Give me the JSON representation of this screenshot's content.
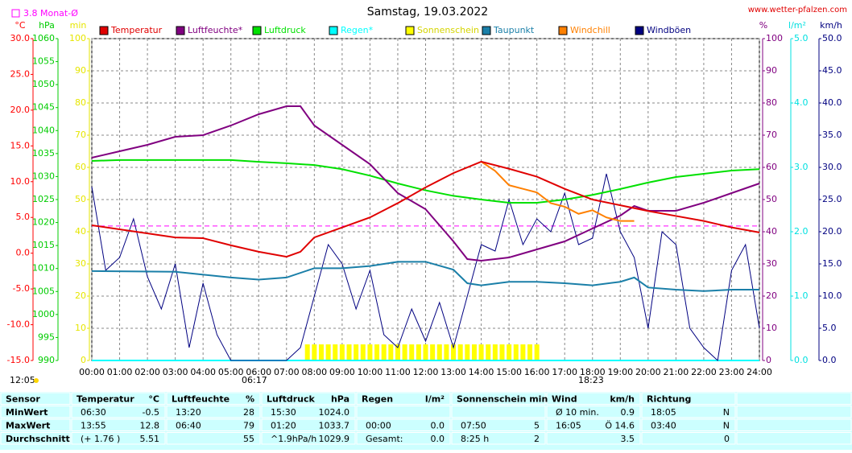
{
  "chart_data": {
    "type": "line",
    "title": "Samstag, 19.03.2022",
    "source": "www.wetter-pfalzen.com",
    "monthly_avg": {
      "label": "3.8 Monat-Ø",
      "value": 3.8,
      "color": "#ff00ff"
    },
    "notes": [
      "12:05",
      "06:17",
      "18:23"
    ],
    "xlim": [
      0,
      24
    ],
    "xticks": [
      {
        "value": 0,
        "label": "00:00"
      },
      {
        "value": 1,
        "label": "01:00"
      },
      {
        "value": 2,
        "label": "02:00"
      },
      {
        "value": 3,
        "label": "03:00"
      },
      {
        "value": 4,
        "label": "04:00"
      },
      {
        "value": 5,
        "label": "05:00"
      },
      {
        "value": 6,
        "label": "06:00"
      },
      {
        "value": 7,
        "label": "07:00"
      },
      {
        "value": 8,
        "label": "08:00"
      },
      {
        "value": 9,
        "label": "09:00"
      },
      {
        "value": 10,
        "label": "10:00"
      },
      {
        "value": 11,
        "label": "11:00"
      },
      {
        "value": 12,
        "label": "12:00"
      },
      {
        "value": 13,
        "label": "13:00"
      },
      {
        "value": 14,
        "label": "14:00"
      },
      {
        "value": 15,
        "label": "15:00"
      },
      {
        "value": 16,
        "label": "16:00"
      },
      {
        "value": 17,
        "label": "17:00"
      },
      {
        "value": 18,
        "label": "18:00"
      },
      {
        "value": 19,
        "label": "19:00"
      },
      {
        "value": 20,
        "label": "20:00"
      },
      {
        "value": 21,
        "label": "21:00"
      },
      {
        "value": 22,
        "label": "22:00"
      },
      {
        "value": 23,
        "label": "23:00"
      },
      {
        "value": 24,
        "label": "24:00"
      }
    ],
    "axes": {
      "temp": {
        "unit": "°C",
        "side": "left",
        "color": "#ff0000",
        "lim": [
          -15,
          30
        ],
        "ticks": [
          {
            "value": -15,
            "label": "-15.0"
          },
          {
            "value": -10,
            "label": "-10.0"
          },
          {
            "value": -5,
            "label": "-5.0"
          },
          {
            "value": 0,
            "label": "0.0"
          },
          {
            "value": 5,
            "label": "5.0"
          },
          {
            "value": 10,
            "label": "10.0"
          },
          {
            "value": 15,
            "label": "15.0"
          },
          {
            "value": 20,
            "label": "20.0"
          },
          {
            "value": 25,
            "label": "25.0"
          },
          {
            "value": 30,
            "label": "30.0"
          }
        ]
      },
      "hpa": {
        "unit": "hPa",
        "side": "left",
        "color": "#00cc00",
        "lim": [
          990,
          1060
        ],
        "ticks": [
          990,
          995,
          1000,
          1005,
          1010,
          1015,
          1020,
          1025,
          1030,
          1035,
          1040,
          1045,
          1050,
          1055,
          1060
        ]
      },
      "min": {
        "unit": "min",
        "side": "left",
        "color": "#e6e600",
        "lim": [
          0,
          100
        ],
        "ticks": [
          0,
          10,
          20,
          30,
          40,
          50,
          60,
          70,
          80,
          90,
          100
        ]
      },
      "pct": {
        "unit": "%",
        "side": "right",
        "color": "#800080",
        "lim": [
          0,
          100
        ],
        "ticks": [
          0,
          10,
          20,
          30,
          40,
          50,
          60,
          70,
          80,
          90,
          100
        ]
      },
      "rain": {
        "unit": "l/m²",
        "side": "right",
        "color": "#00e0e0",
        "lim": [
          0,
          5
        ],
        "ticks": [
          {
            "value": 0,
            "label": "0.0"
          },
          {
            "value": 1,
            "label": "1.0"
          },
          {
            "value": 2,
            "label": "2.0"
          },
          {
            "value": 3,
            "label": "3.0"
          },
          {
            "value": 4,
            "label": "4.0"
          },
          {
            "value": 5,
            "label": "5.0"
          }
        ]
      },
      "kmh": {
        "unit": "km/h",
        "side": "right",
        "color": "#000080",
        "lim": [
          0,
          50
        ],
        "ticks": [
          {
            "value": 0,
            "label": "0.0"
          },
          {
            "value": 5,
            "label": "5.0"
          },
          {
            "value": 10,
            "label": "10.0"
          },
          {
            "value": 15,
            "label": "15.0"
          },
          {
            "value": 20,
            "label": "20.0"
          },
          {
            "value": 25,
            "label": "25.0"
          },
          {
            "value": 30,
            "label": "30.0"
          },
          {
            "value": 35,
            "label": "35.0"
          },
          {
            "value": 40,
            "label": "40.0"
          },
          {
            "value": 45,
            "label": "45.0"
          },
          {
            "value": 50,
            "label": "50.0"
          }
        ]
      }
    },
    "series": [
      {
        "name": "Temperatur",
        "color": "#e00000",
        "axis": "temp",
        "kind": "line",
        "x": [
          0,
          3,
          4,
          5,
          6,
          7,
          7.5,
          8,
          9,
          10,
          11,
          12,
          13,
          14,
          15,
          16,
          17,
          18,
          19,
          20,
          21,
          22,
          23,
          24
        ],
        "values": [
          3.9,
          2.2,
          2.1,
          1.1,
          0.2,
          -0.5,
          0.2,
          2.2,
          3.6,
          5.0,
          7.0,
          9.2,
          11.2,
          12.8,
          11.8,
          10.7,
          9.0,
          7.5,
          6.7,
          5.9,
          5.2,
          4.5,
          3.6,
          2.9
        ]
      },
      {
        "name": "Luftfeuchte*",
        "color": "#800080",
        "axis": "pct",
        "kind": "line",
        "x": [
          0,
          1,
          2,
          3,
          4,
          5,
          6,
          7,
          7.5,
          8,
          9,
          10,
          11,
          12,
          13,
          13.5,
          14,
          15,
          16,
          17,
          18,
          19,
          19.5,
          20,
          21,
          22,
          23,
          24
        ],
        "values": [
          63,
          65,
          67,
          69.5,
          70,
          73,
          76.5,
          79,
          79,
          73,
          67,
          61,
          52,
          47,
          37,
          31.5,
          31,
          32,
          34.5,
          37,
          41,
          45,
          48,
          46.5,
          46.5,
          49,
          52,
          55
        ]
      },
      {
        "name": "Luftdruck",
        "color": "#00e000",
        "axis": "hpa",
        "kind": "line",
        "x": [
          0,
          1,
          2,
          3,
          4,
          5,
          6,
          7,
          8,
          9,
          10,
          11,
          12,
          13,
          14,
          15,
          16,
          17,
          18,
          19,
          20,
          21,
          22,
          23,
          24
        ],
        "values": [
          1033.4,
          1033.6,
          1033.6,
          1033.6,
          1033.6,
          1033.6,
          1033.2,
          1032.9,
          1032.5,
          1031.6,
          1030.2,
          1028.5,
          1027.0,
          1025.8,
          1025.0,
          1024.3,
          1024.3,
          1025.0,
          1026.0,
          1027.3,
          1028.7,
          1029.9,
          1030.6,
          1031.3,
          1031.6
        ]
      },
      {
        "name": "Regen*",
        "color": "#00ffff",
        "axis": "rain",
        "kind": "line",
        "x": [
          0,
          24
        ],
        "values": [
          0,
          0
        ]
      },
      {
        "name": "Sonnenschein",
        "color": "#ffff00",
        "axis": "min",
        "kind": "bar",
        "x": [
          7.75,
          8,
          8.25,
          8.5,
          8.75,
          9,
          9.25,
          9.5,
          9.75,
          10,
          10.25,
          10.5,
          10.75,
          11,
          11.25,
          11.5,
          11.75,
          12,
          12.25,
          12.5,
          12.75,
          13,
          13.25,
          13.5,
          13.75,
          14,
          14.25,
          14.5,
          14.75,
          15,
          15.25,
          15.5,
          15.75,
          16
        ],
        "values": [
          5,
          5,
          5,
          5,
          5,
          5,
          5,
          5,
          5,
          5,
          5,
          5,
          5,
          5,
          5,
          5,
          5,
          5,
          5,
          5,
          5,
          5,
          5,
          5,
          5,
          5,
          5,
          5,
          5,
          5,
          5,
          5,
          5,
          5
        ]
      },
      {
        "name": "Taupunkt",
        "color": "#1a7fa8",
        "axis": "temp",
        "kind": "line",
        "x": [
          0,
          3,
          5,
          6,
          7,
          8,
          9,
          10,
          11,
          12,
          13,
          13.5,
          14,
          15,
          16,
          17,
          18,
          19,
          19.5,
          20,
          21,
          22,
          23,
          24
        ],
        "values": [
          -2.5,
          -2.6,
          -3.4,
          -3.7,
          -3.4,
          -2.1,
          -2.1,
          -1.8,
          -1.2,
          -1.2,
          -2.3,
          -4.2,
          -4.5,
          -4.0,
          -4.0,
          -4.2,
          -4.5,
          -4.0,
          -3.4,
          -4.8,
          -5.1,
          -5.3,
          -5.1,
          -5.1
        ]
      },
      {
        "name": "Windchill",
        "color": "#ff8000",
        "axis": "temp",
        "kind": "line",
        "x": [
          14,
          14.5,
          15,
          15.5,
          16,
          16.5,
          17,
          17.5,
          18,
          18.5,
          19,
          19.5
        ],
        "values": [
          12.8,
          11.5,
          9.5,
          9.0,
          8.5,
          7.0,
          6.5,
          5.5,
          6.0,
          5.0,
          4.5,
          4.5
        ]
      },
      {
        "name": "Windböen",
        "color": "#000080",
        "axis": "kmh",
        "kind": "line",
        "x": [
          0,
          0.5,
          1,
          1.5,
          2,
          2.5,
          3,
          3.5,
          4,
          4.5,
          5,
          5.5,
          6,
          6.5,
          7,
          7.5,
          8,
          8.5,
          9,
          9.5,
          10,
          10.5,
          11,
          11.5,
          12,
          12.5,
          13,
          13.5,
          14,
          14.5,
          15,
          15.5,
          16,
          16.5,
          17,
          17.5,
          18,
          18.5,
          19,
          19.5,
          20,
          20.5,
          21,
          21.5,
          22,
          22.5,
          23,
          23.5,
          24
        ],
        "values": [
          27,
          14,
          16,
          22,
          13,
          8,
          15,
          2,
          12,
          4,
          0,
          0,
          0,
          0,
          0,
          2,
          10,
          18,
          15,
          8,
          14,
          4,
          2,
          8,
          3,
          9,
          2,
          10,
          18,
          17,
          25,
          18,
          22,
          20,
          26,
          18,
          19,
          29,
          20,
          16,
          5,
          20,
          18,
          5,
          2,
          0,
          14,
          18,
          5
        ]
      }
    ]
  },
  "table": {
    "header": [
      "Sensor",
      {
        "name": "Temperatur",
        "unit": "°C"
      },
      {
        "name": "Luftfeuchte",
        "unit": "%"
      },
      {
        "name": "Luftdruck",
        "unit": "hPa"
      },
      {
        "name": "Regen",
        "unit": "l/m²"
      },
      {
        "name": "Sonnenschein min"
      },
      {
        "name": "Wind",
        "unit": "km/h"
      },
      {
        "name": "Richtung"
      }
    ],
    "rows": [
      [
        "MinWert",
        {
          "time": "06:30",
          "value": "-0.5"
        },
        {
          "time": "13:20",
          "value": "28"
        },
        {
          "time": "15:30",
          "value": "1024.0"
        },
        {},
        {},
        {
          "time": "Ø 10 min.",
          "value": "0.9"
        },
        {
          "time": "18:05",
          "value": "N"
        }
      ],
      [
        "MaxWert",
        {
          "time": "13:55",
          "value": "12.8"
        },
        {
          "time": "06:40",
          "value": "79"
        },
        {
          "time": "01:20",
          "value": "1033.7"
        },
        {
          "time": "00:00",
          "value": "0.0"
        },
        {
          "time": "07:50",
          "value": "5"
        },
        {
          "time": "16:05",
          "value": "Ö 14.6"
        },
        {
          "time": "03:40",
          "value": "N"
        }
      ],
      [
        "Durchschnitt",
        {
          "time": "(+ 1.76 )",
          "value": "5.51"
        },
        {
          "value": "55"
        },
        {
          "time": "^1.9hPa/h",
          "value": "1029.9"
        },
        {
          "time": "Gesamt:",
          "value": "0.0"
        },
        {
          "time": "8:25 h",
          "value": "2"
        },
        {
          "value": "3.5"
        },
        {
          "value": "0"
        }
      ]
    ]
  }
}
